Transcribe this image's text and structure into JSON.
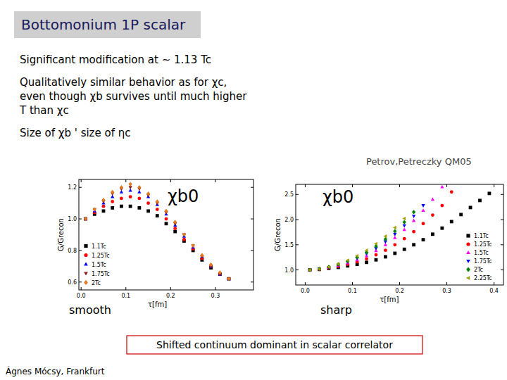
{
  "slide": {
    "title": "Bottomonium 1P scalar",
    "bullets": [
      [
        "Significant modification at ~ 1.13 Tc"
      ],
      [
        "Qualitatively similar behavior as for χc,",
        "even though χb survives until much higher",
        "T than χc"
      ],
      [
        "Size of χb ' size of ηc"
      ]
    ],
    "citation": "Petrov,Petreczky QM05",
    "note": "Shifted continuum dominant in scalar correlator",
    "footer": "Ágnes Mócsy, Frankfurt"
  },
  "chart_data": [
    {
      "type": "scatter",
      "annotation": "χb0",
      "caption": "smooth",
      "xlabel": "τ[fm]",
      "ylabel": "G/Grecon",
      "x": [
        0.01,
        0.03,
        0.05,
        0.07,
        0.09,
        0.11,
        0.13,
        0.15,
        0.17,
        0.19,
        0.21,
        0.23,
        0.25,
        0.27,
        0.29,
        0.31,
        0.33
      ],
      "xlim": [
        -0.005,
        0.385
      ],
      "xticks": [
        {
          "value": 0,
          "label": "0.0"
        },
        0.1,
        0.2,
        0.3
      ],
      "ylim": [
        0.55,
        1.25
      ],
      "yticks": [
        0.6,
        0.8,
        {
          "value": 1,
          "label": "1.0"
        },
        1.2
      ],
      "legend": "lower left",
      "series": [
        {
          "name": "1.1Tc",
          "color": "#000000",
          "marker": "square",
          "values": [
            1.0,
            1.03,
            1.05,
            1.07,
            1.08,
            1.08,
            1.07,
            1.05,
            1.02,
            0.97,
            0.92,
            0.86,
            0.8,
            0.74,
            0.69,
            0.65,
            0.62
          ]
        },
        {
          "name": "1.25Tc",
          "color": "#ff0000",
          "marker": "circle",
          "values": [
            1.0,
            1.04,
            1.08,
            1.11,
            1.13,
            1.14,
            1.13,
            1.1,
            1.06,
            1.0,
            0.94,
            0.87,
            0.81,
            0.75,
            0.7,
            0.65,
            0.62
          ]
        },
        {
          "name": "1.5Tc",
          "color": "#0000ff",
          "marker": "triangle",
          "values": [
            1.0,
            1.05,
            1.1,
            1.14,
            1.17,
            1.18,
            1.17,
            1.14,
            1.09,
            1.03,
            0.96,
            0.89,
            0.82,
            0.76,
            0.7,
            0.65,
            0.62
          ]
        },
        {
          "name": "1.75Tc",
          "color": "#8b1a1a",
          "marker": "triangle-down",
          "values": [
            1.0,
            1.06,
            1.11,
            1.16,
            1.19,
            1.2,
            1.19,
            1.15,
            1.1,
            1.04,
            0.97,
            0.9,
            0.83,
            0.76,
            0.7,
            0.65,
            0.62
          ]
        },
        {
          "name": "2Tc",
          "color": "#e07b20",
          "marker": "diamond",
          "values": [
            1.0,
            1.06,
            1.12,
            1.17,
            1.2,
            1.22,
            1.2,
            1.16,
            1.11,
            1.05,
            0.98,
            0.9,
            0.83,
            0.77,
            0.71,
            0.66,
            0.62
          ]
        }
      ]
    },
    {
      "type": "scatter",
      "annotation": "χb0",
      "caption": "sharp",
      "xlabel": "τ[fm]",
      "ylabel": "G/Grecon",
      "x": [
        0.01,
        0.03,
        0.05,
        0.07,
        0.09,
        0.11,
        0.13,
        0.15,
        0.17,
        0.19,
        0.21,
        0.23,
        0.25,
        0.27,
        0.29,
        0.31,
        0.33,
        0.35,
        0.37,
        0.39
      ],
      "xlim": [
        -0.02,
        0.42
      ],
      "xticks": [
        {
          "value": 0,
          "label": "0.0"
        },
        0.1,
        0.2,
        0.3,
        0.4
      ],
      "ylim": [
        0.7,
        2.7
      ],
      "yticks": [
        {
          "value": 1,
          "label": "1.0"
        },
        1.5,
        {
          "value": 2,
          "label": "2.0"
        },
        2.5
      ],
      "legend": "lower right",
      "series": [
        {
          "name": "1.1Tc",
          "color": "#000000",
          "marker": "square",
          "values": [
            1.0,
            1.01,
            1.03,
            1.05,
            1.08,
            1.11,
            1.15,
            1.2,
            1.26,
            1.33,
            1.41,
            1.5,
            1.6,
            1.71,
            1.83,
            1.96,
            2.1,
            2.24,
            2.38,
            2.52
          ]
        },
        {
          "name": "1.25Tc",
          "color": "#ff0000",
          "marker": "circle",
          "values": [
            1.0,
            1.01,
            1.04,
            1.07,
            1.11,
            1.16,
            1.22,
            1.3,
            1.39,
            1.5,
            1.62,
            1.76,
            1.92,
            2.09,
            2.28,
            2.55,
            null,
            null,
            null,
            null
          ]
        },
        {
          "name": "1.5Tc",
          "color": "#ff00ff",
          "marker": "triangle",
          "values": [
            1.0,
            1.02,
            1.05,
            1.09,
            1.14,
            1.2,
            1.28,
            1.38,
            1.5,
            1.64,
            1.8,
            1.98,
            2.18,
            2.4,
            2.65,
            null,
            null,
            null,
            null,
            null
          ]
        },
        {
          "name": "1.75Tc",
          "color": "#0000ff",
          "marker": "triangle-down",
          "values": [
            1.0,
            1.02,
            1.05,
            1.1,
            1.16,
            1.23,
            1.32,
            1.43,
            1.56,
            1.71,
            1.88,
            2.07,
            2.28,
            null,
            null,
            null,
            null,
            null,
            null,
            null
          ]
        },
        {
          "name": "2Tc",
          "color": "#008000",
          "marker": "diamond",
          "values": [
            1.0,
            1.02,
            1.06,
            1.11,
            1.17,
            1.25,
            1.35,
            1.47,
            1.61,
            1.77,
            1.95,
            2.15,
            null,
            null,
            null,
            null,
            null,
            null,
            null,
            null
          ]
        },
        {
          "name": "2.25Tc",
          "color": "#a0a000",
          "marker": "triangle-left",
          "values": [
            1.0,
            1.02,
            1.06,
            1.12,
            1.19,
            1.28,
            1.39,
            1.52,
            1.67,
            1.84,
            2.02,
            null,
            null,
            null,
            null,
            null,
            null,
            null,
            null,
            null
          ]
        }
      ]
    }
  ]
}
